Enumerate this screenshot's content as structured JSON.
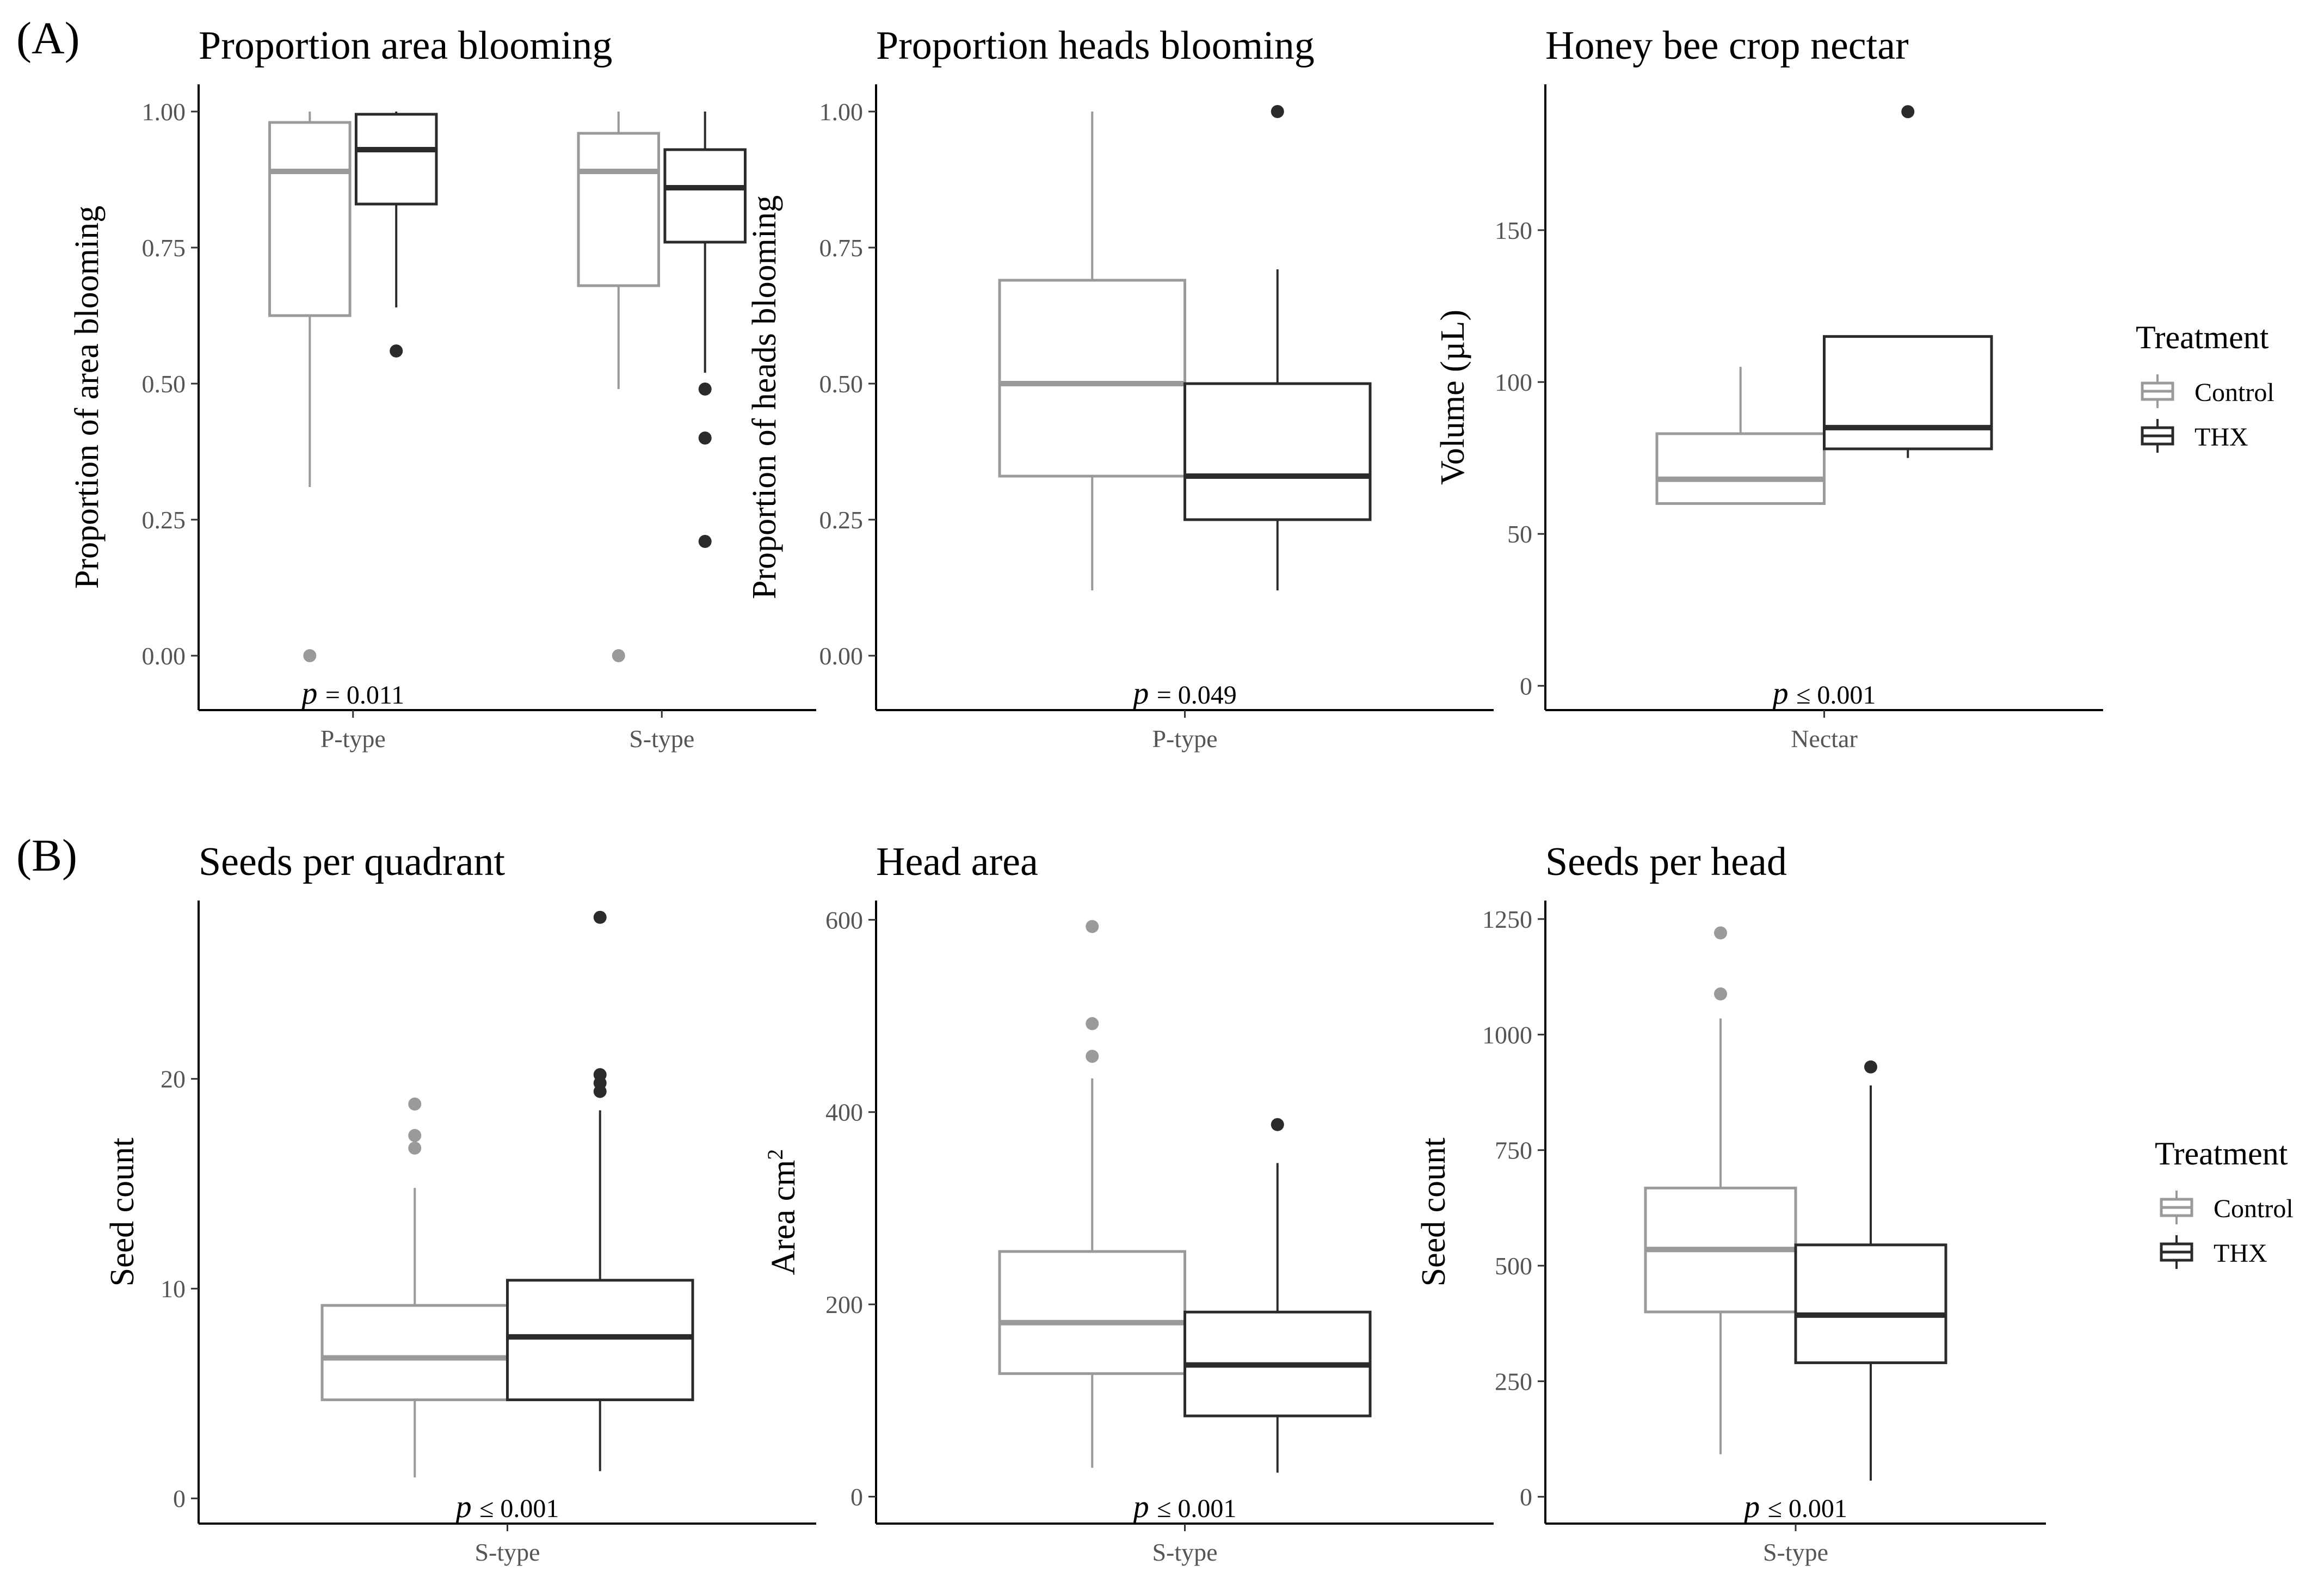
{
  "figure": {
    "panel_labels": [
      "(A)",
      "(B)"
    ],
    "colors": {
      "control": "#9a9a9a",
      "thx": "#2b2b2b"
    }
  },
  "legend": {
    "title": "Treatment",
    "items": [
      {
        "label": "Control",
        "color": "#9a9a9a"
      },
      {
        "label": "THX",
        "color": "#2b2b2b"
      }
    ]
  },
  "chart_data": [
    {
      "type": "boxplot",
      "title": "Proportion area blooming",
      "xlabel": "",
      "ylabel": "Proportion of area blooming",
      "ylim": [
        -0.1,
        1.05
      ],
      "yticks": [
        0,
        0.25,
        0.5,
        0.75,
        1.0
      ],
      "ytick_labels": [
        "0.00",
        "0.25",
        "0.50",
        "0.75",
        "1.00"
      ],
      "categories": [
        "P-type",
        "S-type"
      ],
      "p_prefix": "p",
      "p_text": "= 0.011",
      "series": [
        {
          "name": "Control",
          "boxes": [
            {
              "category": "P-type",
              "whisker_low": 0.31,
              "q1": 0.625,
              "median": 0.89,
              "q3": 0.98,
              "whisker_high": 1.0,
              "outliers": [
                0.0
              ]
            },
            {
              "category": "S-type",
              "whisker_low": 0.49,
              "q1": 0.68,
              "median": 0.89,
              "q3": 0.96,
              "whisker_high": 1.0,
              "outliers": [
                0.0
              ]
            }
          ]
        },
        {
          "name": "THX",
          "boxes": [
            {
              "category": "P-type",
              "whisker_low": 0.64,
              "q1": 0.83,
              "median": 0.93,
              "q3": 0.995,
              "whisker_high": 1.0,
              "outliers": [
                0.56
              ]
            },
            {
              "category": "S-type",
              "whisker_low": 0.52,
              "q1": 0.76,
              "median": 0.86,
              "q3": 0.93,
              "whisker_high": 1.0,
              "outliers": [
                0.49,
                0.4,
                0.21
              ]
            }
          ]
        }
      ]
    },
    {
      "type": "boxplot",
      "title": "Proportion heads blooming",
      "xlabel": "",
      "ylabel": "Proportion of heads blooming",
      "ylim": [
        -0.1,
        1.05
      ],
      "yticks": [
        0,
        0.25,
        0.5,
        0.75,
        1.0
      ],
      "ytick_labels": [
        "0.00",
        "0.25",
        "0.50",
        "0.75",
        "1.00"
      ],
      "categories": [
        "P-type"
      ],
      "p_prefix": "p",
      "p_text": "= 0.049",
      "series": [
        {
          "name": "Control",
          "boxes": [
            {
              "category": "P-type",
              "whisker_low": 0.12,
              "q1": 0.33,
              "median": 0.5,
              "q3": 0.69,
              "whisker_high": 1.0,
              "outliers": []
            }
          ]
        },
        {
          "name": "THX",
          "boxes": [
            {
              "category": "P-type",
              "whisker_low": 0.12,
              "q1": 0.25,
              "median": 0.33,
              "q3": 0.5,
              "whisker_high": 0.71,
              "outliers": [
                1.0
              ]
            }
          ]
        }
      ]
    },
    {
      "type": "boxplot",
      "title": "Honey bee crop nectar",
      "xlabel": "",
      "ylabel": "Volume (µL)",
      "ylim": [
        -8,
        198
      ],
      "yticks": [
        0,
        50,
        100,
        150
      ],
      "ytick_labels": [
        "0",
        "50",
        "100",
        "150"
      ],
      "categories": [
        "Nectar"
      ],
      "p_prefix": "p",
      "p_text": "≤ 0.001",
      "series": [
        {
          "name": "Control",
          "boxes": [
            {
              "category": "Nectar",
              "whisker_low": 60,
              "q1": 60,
              "median": 68,
              "q3": 83,
              "whisker_high": 105,
              "outliers": []
            }
          ]
        },
        {
          "name": "THX",
          "boxes": [
            {
              "category": "Nectar",
              "whisker_low": 75,
              "q1": 78,
              "median": 85,
              "q3": 115,
              "whisker_high": 115,
              "outliers": [
                189
              ]
            }
          ]
        }
      ]
    },
    {
      "type": "boxplot",
      "title": "Seeds per quadrant",
      "xlabel": "",
      "ylabel": "Seed count",
      "ylim": [
        -1.2,
        28.5
      ],
      "yticks": [
        0,
        10,
        20
      ],
      "ytick_labels": [
        "0",
        "10",
        "20"
      ],
      "categories": [
        "S-type"
      ],
      "p_prefix": "p",
      "p_text": "≤ 0.001",
      "series": [
        {
          "name": "Control",
          "boxes": [
            {
              "category": "S-type",
              "whisker_low": 1.0,
              "q1": 4.7,
              "median": 6.7,
              "q3": 9.2,
              "whisker_high": 14.8,
              "outliers": [
                16.7,
                17.3,
                18.8
              ]
            }
          ]
        },
        {
          "name": "THX",
          "boxes": [
            {
              "category": "S-type",
              "whisker_low": 1.3,
              "q1": 4.7,
              "median": 7.7,
              "q3": 10.4,
              "whisker_high": 18.5,
              "outliers": [
                19.4,
                19.8,
                20.2,
                27.7
              ]
            }
          ]
        }
      ]
    },
    {
      "type": "boxplot",
      "title": "Head area",
      "xlabel": "",
      "ylabel": "Area cm",
      "ylabel_superscript": "2",
      "ylim": [
        -28,
        620
      ],
      "yticks": [
        0,
        200,
        400,
        600
      ],
      "ytick_labels": [
        "0",
        "200",
        "400",
        "600"
      ],
      "categories": [
        "S-type"
      ],
      "p_prefix": "p",
      "p_text": "≤ 0.001",
      "series": [
        {
          "name": "Control",
          "boxes": [
            {
              "category": "S-type",
              "whisker_low": 30,
              "q1": 128,
              "median": 181,
              "q3": 255,
              "whisker_high": 435,
              "outliers": [
                458,
                492,
                593
              ]
            }
          ]
        },
        {
          "name": "THX",
          "boxes": [
            {
              "category": "S-type",
              "whisker_low": 25,
              "q1": 84,
              "median": 137,
              "q3": 192,
              "whisker_high": 347,
              "outliers": [
                387
              ]
            }
          ]
        }
      ]
    },
    {
      "type": "boxplot",
      "title": "Seeds per head",
      "xlabel": "",
      "ylabel": "Seed count",
      "ylim": [
        -58,
        1290
      ],
      "yticks": [
        0,
        250,
        500,
        750,
        1000,
        1250
      ],
      "ytick_labels": [
        "0",
        "250",
        "500",
        "750",
        "1000",
        "1250"
      ],
      "categories": [
        "S-type"
      ],
      "p_prefix": "p",
      "p_text": "≤ 0.001",
      "series": [
        {
          "name": "Control",
          "boxes": [
            {
              "category": "S-type",
              "whisker_low": 92,
              "q1": 400,
              "median": 535,
              "q3": 668,
              "whisker_high": 1035,
              "outliers": [
                1088,
                1220
              ]
            }
          ]
        },
        {
          "name": "THX",
          "boxes": [
            {
              "category": "S-type",
              "whisker_low": 35,
              "q1": 290,
              "median": 393,
              "q3": 545,
              "whisker_high": 890,
              "outliers": [
                930
              ]
            }
          ]
        }
      ]
    }
  ]
}
